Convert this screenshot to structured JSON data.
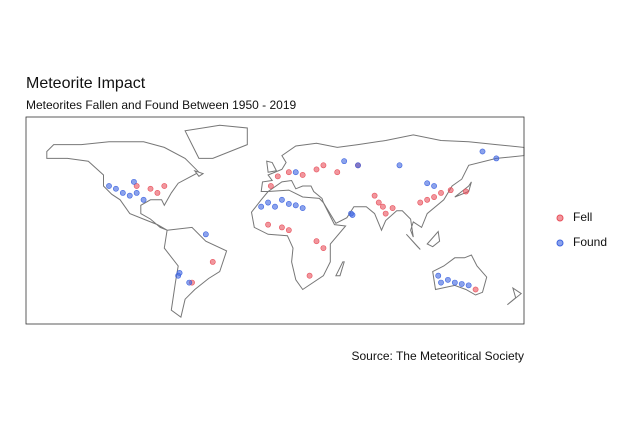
{
  "chart_data": {
    "type": "scatter",
    "title": "Meteorite Impact",
    "subtitle": "Meteorites Fallen and Found Between 1950 - 2019",
    "caption": "Source: The Meteoritical Society",
    "xlim": [
      -180,
      180
    ],
    "ylim": [
      -60,
      90
    ],
    "series": [
      {
        "name": "Fell",
        "color": "#e8505b",
        "x": [
          10,
          20,
          30,
          2,
          -3,
          35,
          45,
          78,
          80,
          75,
          85,
          115,
          120,
          110,
          105,
          138,
          5,
          30,
          35,
          25,
          10,
          -5,
          -90,
          -85,
          -100,
          -80,
          -60,
          -45,
          145,
          127,
          60,
          72
        ],
        "values": [
          50,
          48,
          52,
          47,
          40,
          55,
          50,
          25,
          20,
          28,
          24,
          32,
          35,
          30,
          28,
          36,
          10,
          0,
          -5,
          -25,
          8,
          12,
          38,
          35,
          40,
          40,
          -30,
          -15,
          -35,
          37,
          55,
          33
        ]
      },
      {
        "name": "Found",
        "color": "#3d64e0",
        "x": [
          -110,
          -105,
          -100,
          -115,
          -120,
          -95,
          -102,
          -5,
          0,
          5,
          10,
          15,
          20,
          -10,
          55,
          56,
          -70,
          -69,
          -62,
          120,
          125,
          130,
          135,
          140,
          118,
          110,
          115,
          60,
          90,
          50,
          15,
          160,
          -50,
          150
        ],
        "values": [
          35,
          33,
          35,
          38,
          40,
          30,
          43,
          28,
          25,
          30,
          27,
          26,
          24,
          25,
          20,
          19,
          -25,
          -23,
          -30,
          -30,
          -28,
          -30,
          -31,
          -32,
          -25,
          42,
          40,
          55,
          55,
          58,
          50,
          60,
          5,
          65
        ]
      }
    ]
  }
}
